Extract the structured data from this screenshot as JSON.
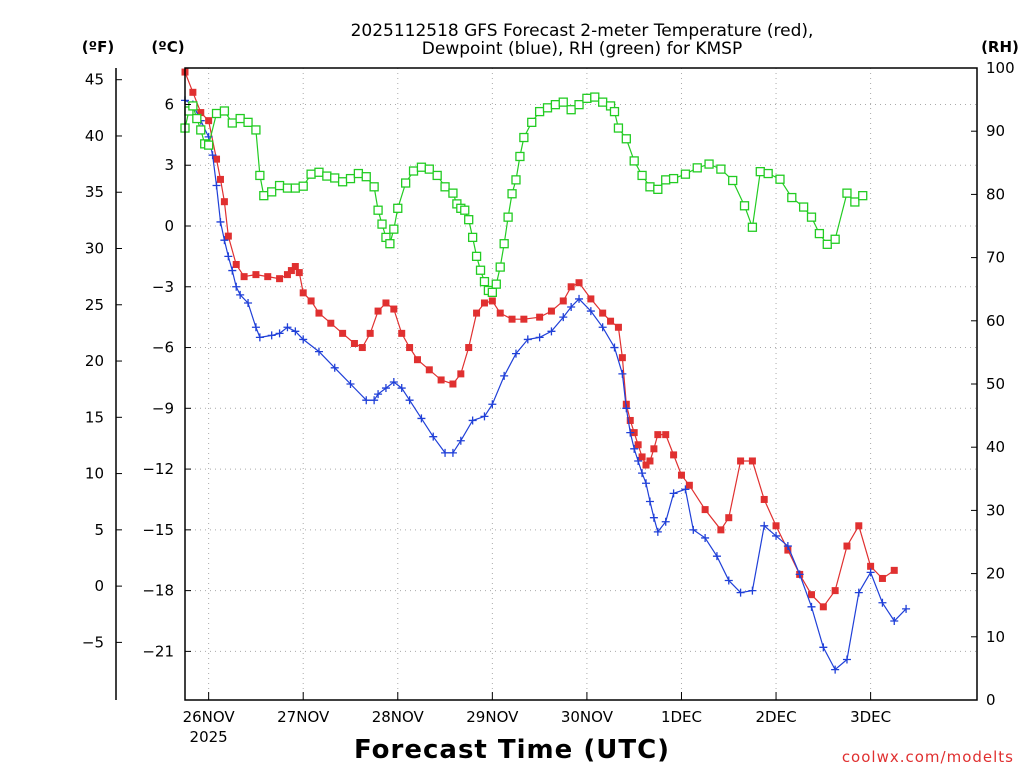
{
  "chart_data": {
    "type": "line",
    "title_line1": "2025112518 GFS Forecast 2-meter Temperature (red),",
    "title_line2": "Dewpoint (blue), RH (green) for KMSP",
    "xlabel": "Forecast Time (UTC)",
    "credit": "coolwx.com/modelts",
    "unit_f": "(ºF)",
    "unit_c": "(ºC)",
    "unit_rh": "(RH)",
    "x_range_hours": [
      18,
      219
    ],
    "x_ticks": [
      {
        "hour": 24,
        "label": "26NOV"
      },
      {
        "hour": 48,
        "label": "27NOV"
      },
      {
        "hour": 72,
        "label": "28NOV"
      },
      {
        "hour": 96,
        "label": "29NOV"
      },
      {
        "hour": 120,
        "label": "30NOV"
      },
      {
        "hour": 144,
        "label": "1DEC"
      },
      {
        "hour": 168,
        "label": "2DEC"
      },
      {
        "hour": 192,
        "label": "3DEC"
      }
    ],
    "year_label": "2025",
    "celsius_range": [
      -23.4,
      7.8
    ],
    "celsius_ticks": [
      "6",
      "3",
      "0",
      "−3",
      "−6",
      "−9",
      "−12",
      "−15",
      "−18",
      "−21"
    ],
    "fahrenheit_ticks": [
      "45",
      "40",
      "35",
      "30",
      "25",
      "20",
      "15",
      "10",
      "5",
      "0",
      "−5"
    ],
    "rh_range": [
      0,
      100
    ],
    "rh_ticks": [
      "100",
      "90",
      "80",
      "70",
      "60",
      "50",
      "40",
      "30",
      "20",
      "10",
      "0"
    ],
    "series": [
      {
        "name": "2-meter Temperature",
        "unit": "C",
        "color": "#e03030",
        "marker": "filled-square",
        "points": [
          [
            18,
            7.6
          ],
          [
            20,
            6.6
          ],
          [
            22,
            5.6
          ],
          [
            24,
            5.2
          ],
          [
            26,
            3.3
          ],
          [
            27,
            2.3
          ],
          [
            28,
            1.2
          ],
          [
            29,
            -0.5
          ],
          [
            31,
            -1.9
          ],
          [
            33,
            -2.5
          ],
          [
            36,
            -2.4
          ],
          [
            39,
            -2.5
          ],
          [
            42,
            -2.6
          ],
          [
            44,
            -2.4
          ],
          [
            45,
            -2.2
          ],
          [
            46,
            -2.0
          ],
          [
            47,
            -2.3
          ],
          [
            48,
            -3.3
          ],
          [
            50,
            -3.7
          ],
          [
            52,
            -4.3
          ],
          [
            55,
            -4.8
          ],
          [
            58,
            -5.3
          ],
          [
            61,
            -5.8
          ],
          [
            63,
            -6.0
          ],
          [
            65,
            -5.3
          ],
          [
            67,
            -4.2
          ],
          [
            69,
            -3.8
          ],
          [
            71,
            -4.1
          ],
          [
            73,
            -5.3
          ],
          [
            75,
            -6.0
          ],
          [
            77,
            -6.6
          ],
          [
            80,
            -7.1
          ],
          [
            83,
            -7.6
          ],
          [
            86,
            -7.8
          ],
          [
            88,
            -7.3
          ],
          [
            90,
            -6.0
          ],
          [
            92,
            -4.3
          ],
          [
            94,
            -3.8
          ],
          [
            96,
            -3.7
          ],
          [
            98,
            -4.3
          ],
          [
            101,
            -4.6
          ],
          [
            104,
            -4.6
          ],
          [
            108,
            -4.5
          ],
          [
            111,
            -4.2
          ],
          [
            114,
            -3.7
          ],
          [
            116,
            -3.0
          ],
          [
            118,
            -2.8
          ],
          [
            121,
            -3.6
          ],
          [
            124,
            -4.3
          ],
          [
            126,
            -4.7
          ],
          [
            128,
            -5.0
          ],
          [
            129,
            -6.5
          ],
          [
            130,
            -8.8
          ],
          [
            131,
            -9.6
          ],
          [
            132,
            -10.2
          ],
          [
            133,
            -10.8
          ],
          [
            134,
            -11.4
          ],
          [
            135,
            -11.8
          ],
          [
            136,
            -11.6
          ],
          [
            137,
            -11.0
          ],
          [
            138,
            -10.3
          ],
          [
            140,
            -10.3
          ],
          [
            142,
            -11.3
          ],
          [
            144,
            -12.3
          ],
          [
            146,
            -12.8
          ],
          [
            150,
            -14.0
          ],
          [
            154,
            -15.0
          ],
          [
            156,
            -14.4
          ],
          [
            159,
            -11.6
          ],
          [
            162,
            -11.6
          ],
          [
            165,
            -13.5
          ],
          [
            168,
            -14.8
          ],
          [
            171,
            -16.0
          ],
          [
            174,
            -17.2
          ],
          [
            177,
            -18.2
          ],
          [
            180,
            -18.8
          ],
          [
            183,
            -18.0
          ],
          [
            186,
            -15.8
          ],
          [
            189,
            -14.8
          ],
          [
            192,
            -16.8
          ],
          [
            195,
            -17.4
          ],
          [
            198,
            -17.0
          ]
        ]
      },
      {
        "name": "Dewpoint",
        "unit": "C",
        "color": "#2040d8",
        "marker": "plus",
        "points": [
          [
            18,
            6.2
          ],
          [
            20,
            6.0
          ],
          [
            22,
            5.2
          ],
          [
            24,
            4.4
          ],
          [
            25,
            3.5
          ],
          [
            26,
            2.0
          ],
          [
            27,
            0.2
          ],
          [
            28,
            -0.7
          ],
          [
            29,
            -1.5
          ],
          [
            30,
            -2.2
          ],
          [
            31,
            -3.0
          ],
          [
            32,
            -3.4
          ],
          [
            34,
            -3.8
          ],
          [
            36,
            -5.0
          ],
          [
            37,
            -5.5
          ],
          [
            40,
            -5.4
          ],
          [
            42,
            -5.3
          ],
          [
            44,
            -5.0
          ],
          [
            46,
            -5.2
          ],
          [
            48,
            -5.6
          ],
          [
            52,
            -6.2
          ],
          [
            56,
            -7.0
          ],
          [
            60,
            -7.8
          ],
          [
            64,
            -8.6
          ],
          [
            66,
            -8.6
          ],
          [
            67,
            -8.3
          ],
          [
            69,
            -8.0
          ],
          [
            71,
            -7.7
          ],
          [
            73,
            -8.0
          ],
          [
            75,
            -8.6
          ],
          [
            78,
            -9.5
          ],
          [
            81,
            -10.4
          ],
          [
            84,
            -11.2
          ],
          [
            86,
            -11.2
          ],
          [
            88,
            -10.6
          ],
          [
            91,
            -9.6
          ],
          [
            94,
            -9.4
          ],
          [
            96,
            -8.8
          ],
          [
            99,
            -7.4
          ],
          [
            102,
            -6.3
          ],
          [
            105,
            -5.6
          ],
          [
            108,
            -5.5
          ],
          [
            111,
            -5.2
          ],
          [
            114,
            -4.5
          ],
          [
            116,
            -4.0
          ],
          [
            118,
            -3.6
          ],
          [
            121,
            -4.2
          ],
          [
            124,
            -5.0
          ],
          [
            127,
            -6.0
          ],
          [
            129,
            -7.3
          ],
          [
            130,
            -9.0
          ],
          [
            131,
            -10.2
          ],
          [
            132,
            -11.0
          ],
          [
            133,
            -11.6
          ],
          [
            134,
            -12.2
          ],
          [
            135,
            -12.7
          ],
          [
            136,
            -13.6
          ],
          [
            137,
            -14.4
          ],
          [
            138,
            -15.1
          ],
          [
            140,
            -14.6
          ],
          [
            142,
            -13.2
          ],
          [
            145,
            -13.0
          ],
          [
            147,
            -15.0
          ],
          [
            150,
            -15.4
          ],
          [
            153,
            -16.3
          ],
          [
            156,
            -17.5
          ],
          [
            159,
            -18.1
          ],
          [
            162,
            -18.0
          ],
          [
            165,
            -14.8
          ],
          [
            168,
            -15.3
          ],
          [
            171,
            -15.8
          ],
          [
            174,
            -17.2
          ],
          [
            177,
            -18.8
          ],
          [
            180,
            -20.8
          ],
          [
            183,
            -21.9
          ],
          [
            186,
            -21.4
          ],
          [
            189,
            -18.1
          ],
          [
            192,
            -17.1
          ],
          [
            195,
            -18.6
          ],
          [
            198,
            -19.5
          ],
          [
            201,
            -18.9
          ]
        ]
      },
      {
        "name": "RH",
        "unit": "%",
        "color": "#22cc22",
        "marker": "hollow-square",
        "points": [
          [
            18,
            90.5
          ],
          [
            19,
            93.2
          ],
          [
            20,
            94.0
          ],
          [
            21,
            92.0
          ],
          [
            22,
            90.2
          ],
          [
            23,
            88.0
          ],
          [
            24,
            87.8
          ],
          [
            26,
            92.8
          ],
          [
            28,
            93.2
          ],
          [
            30,
            91.3
          ],
          [
            32,
            92.0
          ],
          [
            34,
            91.4
          ],
          [
            36,
            90.2
          ],
          [
            37,
            83.0
          ],
          [
            38,
            79.8
          ],
          [
            40,
            80.4
          ],
          [
            42,
            81.4
          ],
          [
            44,
            81.0
          ],
          [
            46,
            81.0
          ],
          [
            48,
            81.3
          ],
          [
            50,
            83.2
          ],
          [
            52,
            83.5
          ],
          [
            54,
            82.9
          ],
          [
            56,
            82.6
          ],
          [
            58,
            82.0
          ],
          [
            60,
            82.5
          ],
          [
            62,
            83.3
          ],
          [
            64,
            82.8
          ],
          [
            66,
            81.2
          ],
          [
            67,
            77.5
          ],
          [
            68,
            75.3
          ],
          [
            69,
            73.2
          ],
          [
            70,
            72.2
          ],
          [
            71,
            74.5
          ],
          [
            72,
            77.8
          ],
          [
            74,
            81.8
          ],
          [
            76,
            83.7
          ],
          [
            78,
            84.3
          ],
          [
            80,
            84.0
          ],
          [
            82,
            83.0
          ],
          [
            84,
            81.2
          ],
          [
            86,
            80.2
          ],
          [
            87,
            78.5
          ],
          [
            88,
            77.8
          ],
          [
            89,
            77.5
          ],
          [
            90,
            76.0
          ],
          [
            91,
            73.2
          ],
          [
            92,
            70.2
          ],
          [
            93,
            68.0
          ],
          [
            94,
            66.2
          ],
          [
            95,
            64.8
          ],
          [
            96,
            64.5
          ],
          [
            97,
            65.8
          ],
          [
            98,
            68.5
          ],
          [
            99,
            72.2
          ],
          [
            100,
            76.4
          ],
          [
            101,
            80.1
          ],
          [
            102,
            82.3
          ],
          [
            103,
            86.0
          ],
          [
            104,
            89.0
          ],
          [
            106,
            91.4
          ],
          [
            108,
            93.1
          ],
          [
            110,
            93.7
          ],
          [
            112,
            94.2
          ],
          [
            114,
            94.6
          ],
          [
            116,
            93.4
          ],
          [
            118,
            94.2
          ],
          [
            120,
            95.2
          ],
          [
            122,
            95.4
          ],
          [
            124,
            94.6
          ],
          [
            126,
            94.0
          ],
          [
            127,
            93.1
          ],
          [
            128,
            90.5
          ],
          [
            130,
            88.8
          ],
          [
            132,
            85.3
          ],
          [
            134,
            83.0
          ],
          [
            136,
            81.2
          ],
          [
            138,
            80.8
          ],
          [
            140,
            82.3
          ],
          [
            142,
            82.5
          ],
          [
            145,
            83.2
          ],
          [
            148,
            84.2
          ],
          [
            151,
            84.8
          ],
          [
            154,
            84.0
          ],
          [
            157,
            82.2
          ],
          [
            160,
            78.2
          ],
          [
            162,
            74.8
          ],
          [
            164,
            83.6
          ],
          [
            166,
            83.3
          ],
          [
            169,
            82.4
          ],
          [
            172,
            79.5
          ],
          [
            175,
            78.0
          ],
          [
            177,
            76.4
          ],
          [
            179,
            73.8
          ],
          [
            181,
            72.1
          ],
          [
            183,
            72.9
          ],
          [
            186,
            80.2
          ],
          [
            188,
            78.8
          ],
          [
            190,
            79.8
          ]
        ]
      }
    ]
  }
}
